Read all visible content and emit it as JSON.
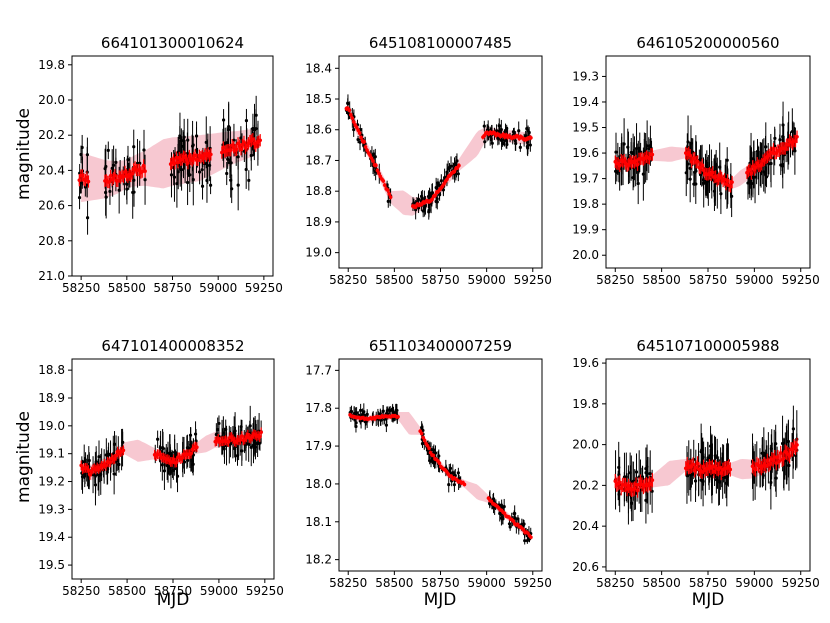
{
  "ylabel": "magnitude",
  "xlabel": "MJD",
  "colors": {
    "data": "#000000",
    "model": "#ff0000",
    "band": "#f4b6c2"
  },
  "chart_data": [
    {
      "type": "scatter",
      "title": "664101300010624",
      "xlim": [
        58200,
        59300
      ],
      "ylim": [
        21.0,
        19.75
      ],
      "y_inverted": true,
      "xticks": [
        58250,
        58500,
        58750,
        59000,
        59250
      ],
      "xtick_labels": [
        "58250",
        "58500",
        "58750",
        "59000",
        "59250"
      ],
      "yticks": [
        19.8,
        20.0,
        20.2,
        20.4,
        20.6,
        20.8,
        21.0
      ],
      "ytick_labels": [
        "19.8",
        "20.0",
        "20.2",
        "20.4",
        "20.6",
        "20.8",
        "21.0"
      ],
      "seasons": [
        [
          58240,
          58290
        ],
        [
          58380,
          58600
        ],
        [
          58740,
          58960
        ],
        [
          59020,
          59230
        ]
      ],
      "y_center": [
        [
          58250,
          20.44
        ],
        [
          58380,
          20.45
        ],
        [
          58450,
          20.44
        ],
        [
          58550,
          20.4
        ],
        [
          58750,
          20.35
        ],
        [
          58900,
          20.33
        ],
        [
          59050,
          20.28
        ],
        [
          59200,
          20.24
        ]
      ],
      "y_band": [
        [
          58250,
          0.14
        ],
        [
          58500,
          0.08
        ],
        [
          58600,
          0.1
        ],
        [
          58700,
          0.14
        ],
        [
          58900,
          0.13
        ],
        [
          59100,
          0.09
        ],
        [
          59250,
          0.07
        ]
      ],
      "scatter": 0.22,
      "errbar": 0.1,
      "n_points": 130
    },
    {
      "type": "scatter",
      "title": "645108100007485",
      "xlim": [
        58200,
        59300
      ],
      "ylim": [
        19.05,
        18.36
      ],
      "y_inverted": true,
      "xticks": [
        58250,
        58500,
        58750,
        59000,
        59250
      ],
      "xtick_labels": [
        "58250",
        "58500",
        "58750",
        "59000",
        "59250"
      ],
      "yticks": [
        18.4,
        18.5,
        18.6,
        18.7,
        18.8,
        18.9,
        19.0
      ],
      "ytick_labels": [
        "18.4",
        "18.5",
        "18.6",
        "18.7",
        "18.8",
        "18.9",
        "19.0"
      ],
      "seasons": [
        [
          58240,
          58480
        ],
        [
          58600,
          58850
        ],
        [
          58980,
          59240
        ]
      ],
      "y_center": [
        [
          58250,
          18.53
        ],
        [
          58300,
          18.6
        ],
        [
          58400,
          18.72
        ],
        [
          58480,
          18.82
        ],
        [
          58600,
          18.85
        ],
        [
          58700,
          18.83
        ],
        [
          58800,
          18.75
        ],
        [
          58900,
          18.68
        ],
        [
          59000,
          18.61
        ],
        [
          59100,
          18.62
        ],
        [
          59240,
          18.63
        ]
      ],
      "y_band": [
        [
          58250,
          0.02
        ],
        [
          58480,
          0.02
        ],
        [
          58550,
          0.04
        ],
        [
          58650,
          0.02
        ],
        [
          58850,
          0.02
        ],
        [
          58950,
          0.04
        ],
        [
          59000,
          0.02
        ],
        [
          59240,
          0.02
        ]
      ],
      "scatter": 0.04,
      "errbar": 0.022,
      "n_points": 150
    },
    {
      "type": "scatter",
      "title": "646105200000560",
      "xlim": [
        58200,
        59300
      ],
      "ylim": [
        20.05,
        19.22
      ],
      "y_inverted": true,
      "xticks": [
        58250,
        58500,
        58750,
        59000,
        59250
      ],
      "xtick_labels": [
        "58250",
        "58500",
        "58750",
        "59000",
        "59250"
      ],
      "yticks": [
        19.3,
        19.4,
        19.5,
        19.6,
        19.7,
        19.8,
        19.9,
        20.0
      ],
      "ytick_labels": [
        "19.3",
        "19.4",
        "19.5",
        "19.6",
        "19.7",
        "19.8",
        "19.9",
        "20.0"
      ],
      "seasons": [
        [
          58250,
          58450
        ],
        [
          58630,
          58880
        ],
        [
          58960,
          59230
        ]
      ],
      "y_center": [
        [
          58250,
          19.64
        ],
        [
          58350,
          19.64
        ],
        [
          58450,
          19.61
        ],
        [
          58630,
          19.6
        ],
        [
          58750,
          19.68
        ],
        [
          58880,
          19.72
        ],
        [
          59000,
          19.66
        ],
        [
          59100,
          19.6
        ],
        [
          59230,
          19.54
        ]
      ],
      "y_band": [
        [
          58250,
          0.02
        ],
        [
          58450,
          0.02
        ],
        [
          58550,
          0.03
        ],
        [
          58630,
          0.02
        ],
        [
          58880,
          0.02
        ],
        [
          58920,
          0.03
        ],
        [
          59230,
          0.02
        ]
      ],
      "scatter": 0.09,
      "errbar": 0.07,
      "n_points": 170
    },
    {
      "type": "scatter",
      "title": "647101400008352",
      "xlim": [
        58200,
        59300
      ],
      "ylim": [
        19.55,
        18.76
      ],
      "y_inverted": true,
      "xticks": [
        58250,
        58500,
        58750,
        59000,
        59250
      ],
      "xtick_labels": [
        "58250",
        "58500",
        "58750",
        "59000",
        "59250"
      ],
      "yticks": [
        18.8,
        18.9,
        19.0,
        19.1,
        19.2,
        19.3,
        19.4,
        19.5
      ],
      "ytick_labels": [
        "18.8",
        "18.9",
        "19.0",
        "19.1",
        "19.2",
        "19.3",
        "19.4",
        "19.5"
      ],
      "seasons": [
        [
          58250,
          58480
        ],
        [
          58650,
          58880
        ],
        [
          58980,
          59230
        ]
      ],
      "y_center": [
        [
          58270,
          19.15
        ],
        [
          58300,
          19.17
        ],
        [
          58400,
          19.13
        ],
        [
          58480,
          19.08
        ],
        [
          58650,
          19.1
        ],
        [
          58750,
          19.13
        ],
        [
          58880,
          19.08
        ],
        [
          58980,
          19.05
        ],
        [
          59100,
          19.05
        ],
        [
          59230,
          19.03
        ]
      ],
      "y_band": [
        [
          58250,
          0.03
        ],
        [
          58480,
          0.02
        ],
        [
          58560,
          0.04
        ],
        [
          58650,
          0.02
        ],
        [
          58880,
          0.02
        ],
        [
          58930,
          0.03
        ],
        [
          59230,
          0.02
        ]
      ],
      "scatter": 0.07,
      "errbar": 0.05,
      "n_points": 160
    },
    {
      "type": "scatter",
      "title": "651103400007259",
      "xlim": [
        58200,
        59300
      ],
      "ylim": [
        18.23,
        17.67
      ],
      "y_inverted": true,
      "xticks": [
        58250,
        58500,
        58750,
        59000,
        59250
      ],
      "xtick_labels": [
        "58250",
        "58500",
        "58750",
        "59000",
        "59250"
      ],
      "yticks": [
        17.7,
        17.8,
        17.9,
        18.0,
        18.1,
        18.2
      ],
      "ytick_labels": [
        "17.7",
        "17.8",
        "17.9",
        "18.0",
        "18.1",
        "18.2"
      ],
      "seasons": [
        [
          58260,
          58520
        ],
        [
          58640,
          58880
        ],
        [
          59010,
          59240
        ]
      ],
      "y_center": [
        [
          58260,
          17.82
        ],
        [
          58350,
          17.83
        ],
        [
          58450,
          17.82
        ],
        [
          58520,
          17.82
        ],
        [
          58640,
          17.86
        ],
        [
          58700,
          17.92
        ],
        [
          58800,
          17.98
        ],
        [
          58880,
          18.0
        ],
        [
          59010,
          18.04
        ],
        [
          59100,
          18.08
        ],
        [
          59240,
          18.14
        ]
      ],
      "y_band": [
        [
          58260,
          0.01
        ],
        [
          58520,
          0.01
        ],
        [
          58580,
          0.03
        ],
        [
          58640,
          0.01
        ],
        [
          58880,
          0.01
        ],
        [
          58950,
          0.02
        ],
        [
          59010,
          0.01
        ],
        [
          59240,
          0.01
        ]
      ],
      "scatter": 0.03,
      "errbar": 0.015,
      "n_points": 170
    },
    {
      "type": "scatter",
      "title": "645107100005988",
      "xlim": [
        58200,
        59300
      ],
      "ylim": [
        20.62,
        19.58
      ],
      "y_inverted": true,
      "xticks": [
        58250,
        58500,
        58750,
        59000,
        59250
      ],
      "xtick_labels": [
        "58250",
        "58500",
        "58750",
        "59000",
        "59250"
      ],
      "yticks": [
        19.6,
        19.8,
        20.0,
        20.2,
        20.4,
        20.6
      ],
      "ytick_labels": [
        "19.6",
        "19.8",
        "20.0",
        "20.2",
        "20.4",
        "20.6"
      ],
      "seasons": [
        [
          58250,
          58450
        ],
        [
          58630,
          58870
        ],
        [
          58990,
          59230
        ]
      ],
      "y_center": [
        [
          58250,
          20.18
        ],
        [
          58330,
          20.22
        ],
        [
          58450,
          20.18
        ],
        [
          58630,
          20.1
        ],
        [
          58750,
          20.12
        ],
        [
          58870,
          20.12
        ],
        [
          58990,
          20.12
        ],
        [
          59100,
          20.08
        ],
        [
          59230,
          20.02
        ]
      ],
      "y_band": [
        [
          58250,
          0.03
        ],
        [
          58450,
          0.03
        ],
        [
          58540,
          0.06
        ],
        [
          58630,
          0.03
        ],
        [
          58870,
          0.03
        ],
        [
          58930,
          0.05
        ],
        [
          59230,
          0.03
        ]
      ],
      "scatter": 0.12,
      "errbar": 0.1,
      "n_points": 160
    }
  ]
}
